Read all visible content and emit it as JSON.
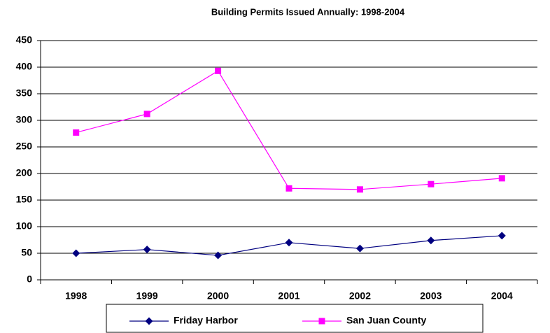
{
  "chart_data": {
    "type": "line",
    "title": "Building Permits Issued Annually:  1998-2004",
    "categories": [
      "1998",
      "1999",
      "2000",
      "2001",
      "2002",
      "2003",
      "2004"
    ],
    "series": [
      {
        "name": "Friday Harbor",
        "color": "#000080",
        "marker": "diamond",
        "values": [
          50,
          57,
          46,
          70,
          59,
          74,
          83
        ]
      },
      {
        "name": "San Juan County",
        "color": "#ff00ff",
        "marker": "square",
        "values": [
          277,
          312,
          393,
          172,
          170,
          180,
          191
        ]
      }
    ],
    "ylim": [
      0,
      450
    ],
    "yticks": [
      0,
      50,
      100,
      150,
      200,
      250,
      300,
      350,
      400,
      450
    ],
    "grid": true,
    "legend": "bottom"
  }
}
